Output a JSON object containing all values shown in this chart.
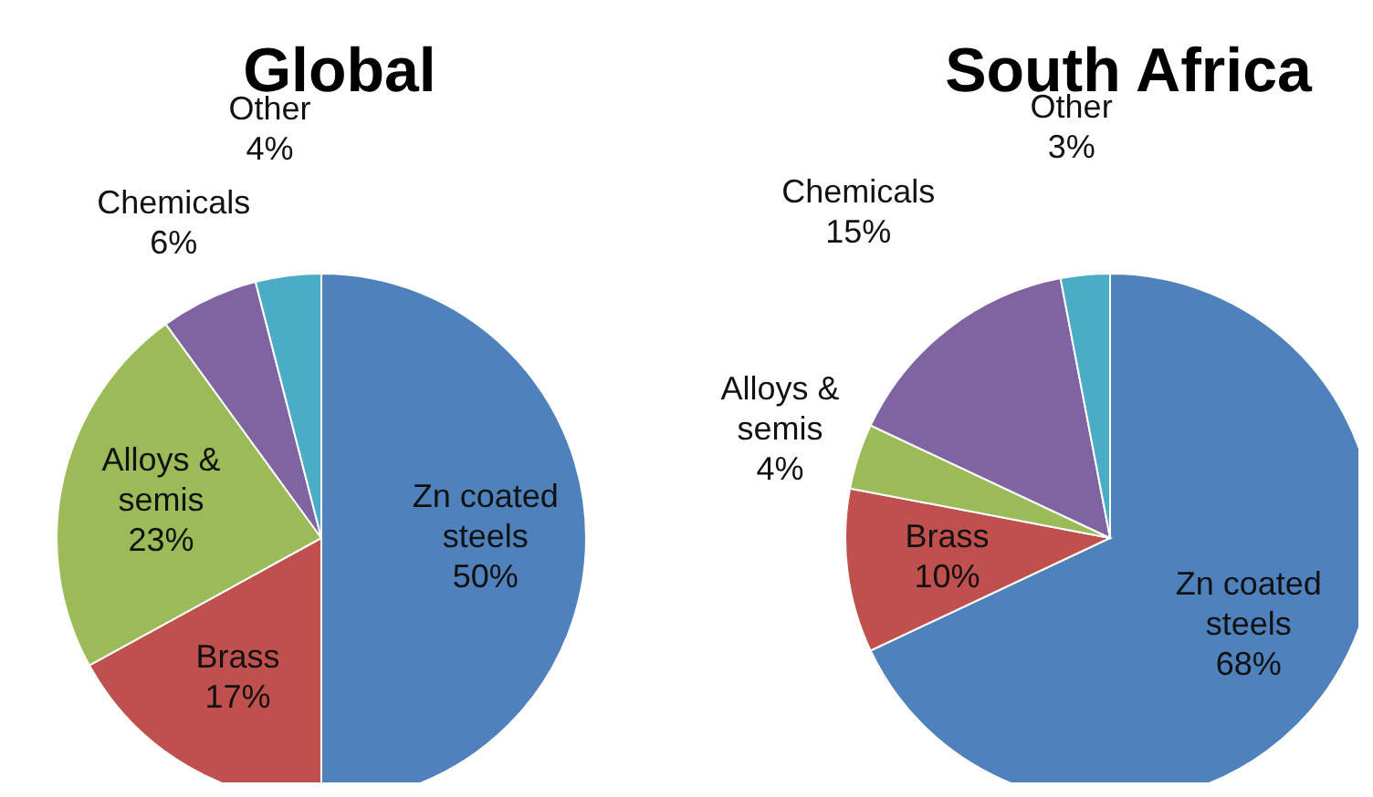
{
  "chart_data": [
    {
      "type": "pie",
      "title": "Global",
      "categories": [
        "Zn coated steels",
        "Brass",
        "Alloys & semis",
        "Chemicals",
        "Other"
      ],
      "values": [
        50,
        17,
        23,
        6,
        4
      ],
      "value_labels": [
        "50%",
        "17%",
        "23%",
        "6%",
        "4%"
      ],
      "colors": [
        "#4f81bd",
        "#c0504d",
        "#9bbb59",
        "#8064a2",
        "#4bacc6"
      ]
    },
    {
      "type": "pie",
      "title": "South Africa",
      "categories": [
        "Zn coated steels",
        "Brass",
        "Alloys & semis",
        "Chemicals",
        "Other"
      ],
      "values": [
        68,
        10,
        4,
        15,
        3
      ],
      "value_labels": [
        "68%",
        "10%",
        "4%",
        "15%",
        "3%"
      ],
      "colors": [
        "#4f81bd",
        "#c0504d",
        "#9bbb59",
        "#8064a2",
        "#4bacc6"
      ]
    }
  ]
}
